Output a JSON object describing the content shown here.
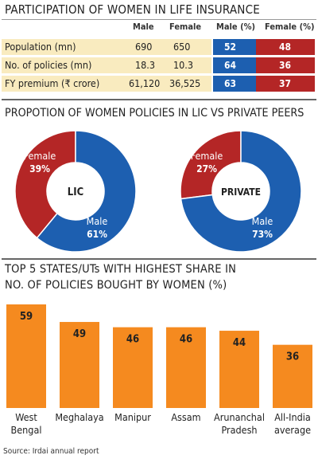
{
  "section1": {
    "title": "PARTICIPATION OF WOMEN IN LIFE INSURANCE",
    "headers": {
      "male": "Male",
      "female": "Female",
      "male_pct": "Male (%)",
      "female_pct": "Female (%)"
    },
    "rows": [
      {
        "label": "Population (mn)",
        "male": "690",
        "female": "650",
        "male_pct": "52",
        "female_pct": "48"
      },
      {
        "label": "No. of policies (mn)",
        "male": "18.3",
        "female": "10.3",
        "male_pct": "64",
        "female_pct": "36"
      },
      {
        "label": "FY premium (₹ crore)",
        "male": "61,120",
        "female": "36,525",
        "male_pct": "63",
        "female_pct": "37"
      }
    ]
  },
  "section2": {
    "title": "PROPOTION OF WOMEN POLICIES IN LIC VS PRIVATE PEERS"
  },
  "section3": {
    "title_line1": "TOP 5 STATES/UTs WITH HIGHEST SHARE IN",
    "title_line2": "NO. OF POLICIES BOUGHT BY WOMEN (%)"
  },
  "source": "Source: Irdai annual report",
  "colors": {
    "male": "#1d5fb0",
    "female": "#b42626",
    "bar": "#f58a1f",
    "row_bg": "#f9ebbf"
  },
  "chart_data": [
    {
      "type": "pie",
      "center_label": "LIC",
      "slices": [
        {
          "label": "Female",
          "value": 39,
          "display": "39%"
        },
        {
          "label": "Male",
          "value": 61,
          "display": "61%"
        }
      ]
    },
    {
      "type": "pie",
      "center_label": "PRIVATE",
      "slices": [
        {
          "label": "Female",
          "value": 27,
          "display": "27%"
        },
        {
          "label": "Male",
          "value": 73,
          "display": "73%"
        }
      ]
    },
    {
      "type": "bar",
      "categories": [
        [
          "West",
          "Bengal"
        ],
        [
          "Meghalaya"
        ],
        [
          "Manipur"
        ],
        [
          "Assam"
        ],
        [
          "Arunanchal",
          "Pradesh"
        ],
        [
          "All-India",
          "average"
        ]
      ],
      "values": [
        59,
        49,
        46,
        46,
        44,
        36
      ]
    }
  ]
}
